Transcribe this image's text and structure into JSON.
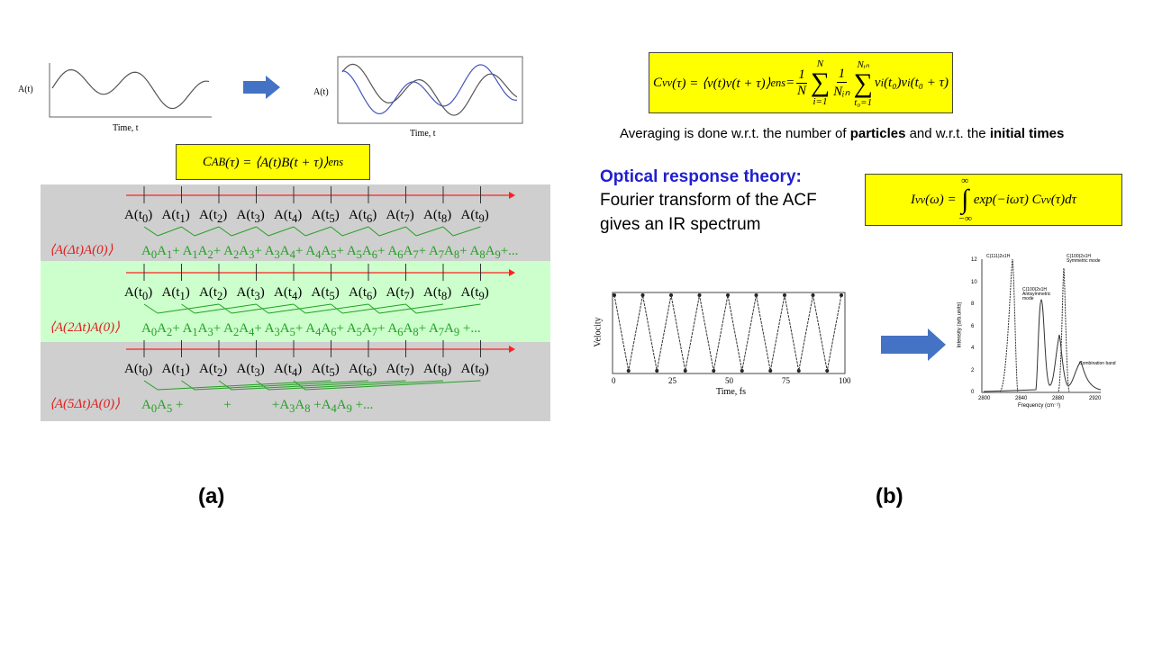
{
  "panel_a": {
    "plot_left": {
      "y_label": "A(t)",
      "x_label": "Time, t"
    },
    "plot_right": {
      "y_label": "A(t)",
      "x_label": "Time, t"
    },
    "formula": [
      {
        "t": "C"
      },
      {
        "sub": "AB"
      },
      {
        "t": "(τ) = ⟨A(t)B(t + τ)⟩"
      },
      {
        "sub": "ens"
      }
    ],
    "time_prefix": "A(t",
    "time_suffix": ")",
    "time_subscripts": [
      "0",
      "1",
      "2",
      "3",
      "4",
      "5",
      "6",
      "7",
      "8",
      "9"
    ],
    "rows": [
      {
        "label": "⟨A(Δt)A(0)⟩",
        "sum": [
          {
            "t": "A"
          },
          {
            "sub": "0"
          },
          {
            "t": "A"
          },
          {
            "sub": "1"
          },
          {
            "t": "+ A"
          },
          {
            "sub": "1"
          },
          {
            "t": "A"
          },
          {
            "sub": "2"
          },
          {
            "t": "+ A"
          },
          {
            "sub": "2"
          },
          {
            "t": "A"
          },
          {
            "sub": "3"
          },
          {
            "t": "+ A"
          },
          {
            "sub": "3"
          },
          {
            "t": "A"
          },
          {
            "sub": "4"
          },
          {
            "t": "+ A"
          },
          {
            "sub": "4"
          },
          {
            "t": "A"
          },
          {
            "sub": "5"
          },
          {
            "t": "+ A"
          },
          {
            "sub": "5"
          },
          {
            "t": "A"
          },
          {
            "sub": "6"
          },
          {
            "t": "+ A"
          },
          {
            "sub": "6"
          },
          {
            "t": "A"
          },
          {
            "sub": "7"
          },
          {
            "t": "+ A"
          },
          {
            "sub": "7"
          },
          {
            "t": "A"
          },
          {
            "sub": "8"
          },
          {
            "t": "+ A"
          },
          {
            "sub": "8"
          },
          {
            "t": "A"
          },
          {
            "sub": "9"
          },
          {
            "t": "+..."
          }
        ]
      },
      {
        "label": "⟨A(2Δt)A(0)⟩",
        "sum": [
          {
            "t": "A"
          },
          {
            "sub": "0"
          },
          {
            "t": "A"
          },
          {
            "sub": "2"
          },
          {
            "t": "+ A"
          },
          {
            "sub": "1"
          },
          {
            "t": "A"
          },
          {
            "sub": "3"
          },
          {
            "t": "+ A"
          },
          {
            "sub": "2"
          },
          {
            "t": "A"
          },
          {
            "sub": "4"
          },
          {
            "t": "+ A"
          },
          {
            "sub": "3"
          },
          {
            "t": "A"
          },
          {
            "sub": "5"
          },
          {
            "t": "+ A"
          },
          {
            "sub": "4"
          },
          {
            "t": "A"
          },
          {
            "sub": "6"
          },
          {
            "t": "+ A"
          },
          {
            "sub": "5"
          },
          {
            "t": "A"
          },
          {
            "sub": "7"
          },
          {
            "t": "+ A"
          },
          {
            "sub": "6"
          },
          {
            "t": "A"
          },
          {
            "sub": "8"
          },
          {
            "t": "+ A"
          },
          {
            "sub": "7"
          },
          {
            "t": "A"
          },
          {
            "sub": "9"
          },
          {
            "t": " +..."
          }
        ]
      },
      {
        "label": "⟨A(5Δt)A(0)⟩",
        "sum": [
          {
            "t": "A"
          },
          {
            "sub": "0"
          },
          {
            "t": "A"
          },
          {
            "sub": "5"
          },
          {
            "t": " +            +            +A"
          },
          {
            "sub": "3"
          },
          {
            "t": "A"
          },
          {
            "sub": "8"
          },
          {
            "t": " +A"
          },
          {
            "sub": "4"
          },
          {
            "t": "A"
          },
          {
            "sub": "9"
          },
          {
            "t": " +..."
          }
        ]
      }
    ]
  },
  "caption_a": "(a)",
  "panel_b": {
    "formula": [
      {
        "t": "C"
      },
      {
        "sub": "vv"
      },
      {
        "t": "(τ) = ⟨v(t)v(t + τ)⟩"
      },
      {
        "sub": "ens"
      },
      {
        "t": " = "
      },
      {
        "num": "1",
        "den": "N"
      },
      {
        "hi": "N",
        "sym": "∑",
        "lo": "i=1"
      },
      {
        "num": "1",
        "den": "Nᵢₙ"
      },
      {
        "hi": "Nᵢₙ",
        "sym": "∑",
        "lo": "t₀=1"
      },
      {
        "t": " v"
      },
      {
        "sub": "i"
      },
      {
        "t": "(t₀)v"
      },
      {
        "sub": "i"
      },
      {
        "t": "(t₀ + τ)"
      }
    ],
    "averaging": [
      {
        "t": "Averaging is done w.r.t. the number of "
      },
      {
        "b": "particles"
      },
      {
        "t": " and w.r.t. the "
      },
      {
        "b": "initial times"
      }
    ],
    "heading": "Optical response theory:",
    "body": [
      "Fourier transform of the ACF",
      "gives an IR spectrum"
    ],
    "formula2": [
      {
        "t": "I"
      },
      {
        "sub": "vv"
      },
      {
        "t": "(ω) = "
      },
      {
        "hi": "∞",
        "sym": "∫",
        "lo": "−∞"
      },
      {
        "t": "exp(−iωτ) C"
      },
      {
        "sub": "vv"
      },
      {
        "t": "(τ)dτ"
      }
    ],
    "velocity_plot": {
      "y_label": "Velocity",
      "x_label": "Time, fs",
      "x_ticks": [
        "0",
        "25",
        "50",
        "75",
        "100"
      ]
    },
    "spectrum": {
      "y_label": "Intensity (arb.units)",
      "x_label": "Frequency (cm⁻¹)",
      "y_ticks": [
        "0",
        "2",
        "4",
        "6",
        "8",
        "10",
        "12"
      ],
      "x_ticks": [
        "2800",
        "2840",
        "2880",
        "2920"
      ],
      "annotations": [
        "C(111)2x1H",
        "C(100)2x1H Antisymmetric mode",
        "C(100)2x1H Symmetric mode",
        "Combination band"
      ]
    }
  },
  "caption_b": "(b)"
}
